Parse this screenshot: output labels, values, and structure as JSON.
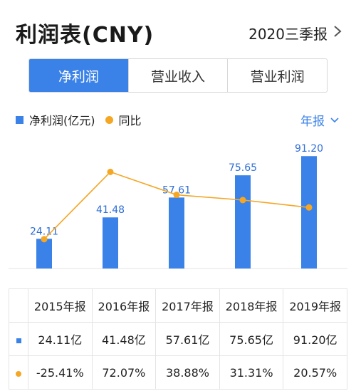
{
  "header": {
    "title": "利润表(CNY)",
    "period": "2020三季报"
  },
  "tabs": [
    {
      "label": "净利润",
      "active": true
    },
    {
      "label": "营业收入",
      "active": false
    },
    {
      "label": "营业利润",
      "active": false
    }
  ],
  "legend": {
    "bar_label": "净利润(亿元)",
    "line_label": "同比"
  },
  "frequency": "年报",
  "colors": {
    "bar": "#3b82e8",
    "line": "#f5a623",
    "positive": "#e0393e",
    "negative": "#1fa84f"
  },
  "chart_data": {
    "type": "bar",
    "categories": [
      "2015年报",
      "2016年报",
      "2017年报",
      "2018年报",
      "2019年报"
    ],
    "series": [
      {
        "name": "净利润(亿元)",
        "type": "bar",
        "values": [
          24.11,
          41.48,
          57.61,
          75.65,
          91.2
        ],
        "labels": [
          "24.11",
          "41.48",
          "57.61",
          "75.65",
          "91.20"
        ]
      },
      {
        "name": "同比",
        "type": "line",
        "values": [
          -25.41,
          72.07,
          38.88,
          31.31,
          20.57
        ]
      }
    ]
  },
  "table": {
    "headers": [
      "2015年报",
      "2016年报",
      "2017年报",
      "2018年报",
      "2019年报"
    ],
    "profit_row": [
      "24.11亿",
      "41.48亿",
      "57.61亿",
      "75.65亿",
      "91.20亿"
    ],
    "yoy_row": [
      "-25.41%",
      "72.07%",
      "38.88%",
      "31.31%",
      "20.57%"
    ]
  }
}
